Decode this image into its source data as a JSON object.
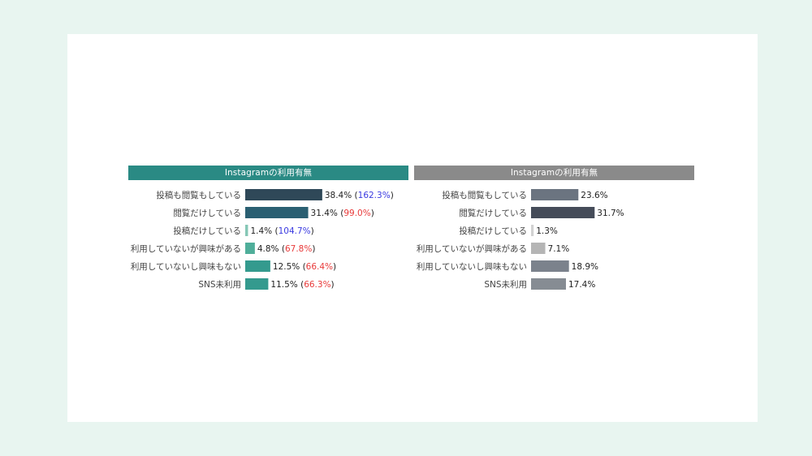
{
  "chart_data": [
    {
      "type": "bar",
      "title": "Instagramの利用有無",
      "header_color": "#2a8a84",
      "categories": [
        "投稿も閲覧もしている",
        "閲覧だけしている",
        "投稿だけしている",
        "利用していないが興味がある",
        "利用していないし興味もない",
        "SNS未利用"
      ],
      "values": [
        38.4,
        31.4,
        1.4,
        4.8,
        12.5,
        11.5
      ],
      "value_labels": [
        "38.4%",
        "31.4%",
        "1.4%",
        "4.8%",
        "12.5%",
        "11.5%"
      ],
      "index_labels": [
        "162.3%",
        "99.0%",
        "104.7%",
        "67.8%",
        "66.4%",
        "66.3%"
      ],
      "index_colors": [
        "#3a3ae0",
        "#e83a3a",
        "#3a3ae0",
        "#e83a3a",
        "#e83a3a",
        "#e83a3a"
      ],
      "bar_colors": [
        "#2f4858",
        "#2a5f72",
        "#86c7b6",
        "#4fae9a",
        "#349a8e",
        "#349a8e"
      ],
      "xlim": [
        0,
        40
      ]
    },
    {
      "type": "bar",
      "title": "Instagramの利用有無",
      "header_color": "#8a8a8a",
      "categories": [
        "投稿も閲覧もしている",
        "閲覧だけしている",
        "投稿だけしている",
        "利用していないが興味がある",
        "利用していないし興味もない",
        "SNS未利用"
      ],
      "values": [
        23.6,
        31.7,
        1.3,
        7.1,
        18.9,
        17.4
      ],
      "value_labels": [
        "23.6%",
        "31.7%",
        "1.3%",
        "7.1%",
        "18.9%",
        "17.4%"
      ],
      "bar_colors": [
        "#6b7480",
        "#454c59",
        "#d2d2d2",
        "#b5b5b5",
        "#7b828c",
        "#868c93"
      ],
      "xlim": [
        0,
        40
      ]
    }
  ]
}
